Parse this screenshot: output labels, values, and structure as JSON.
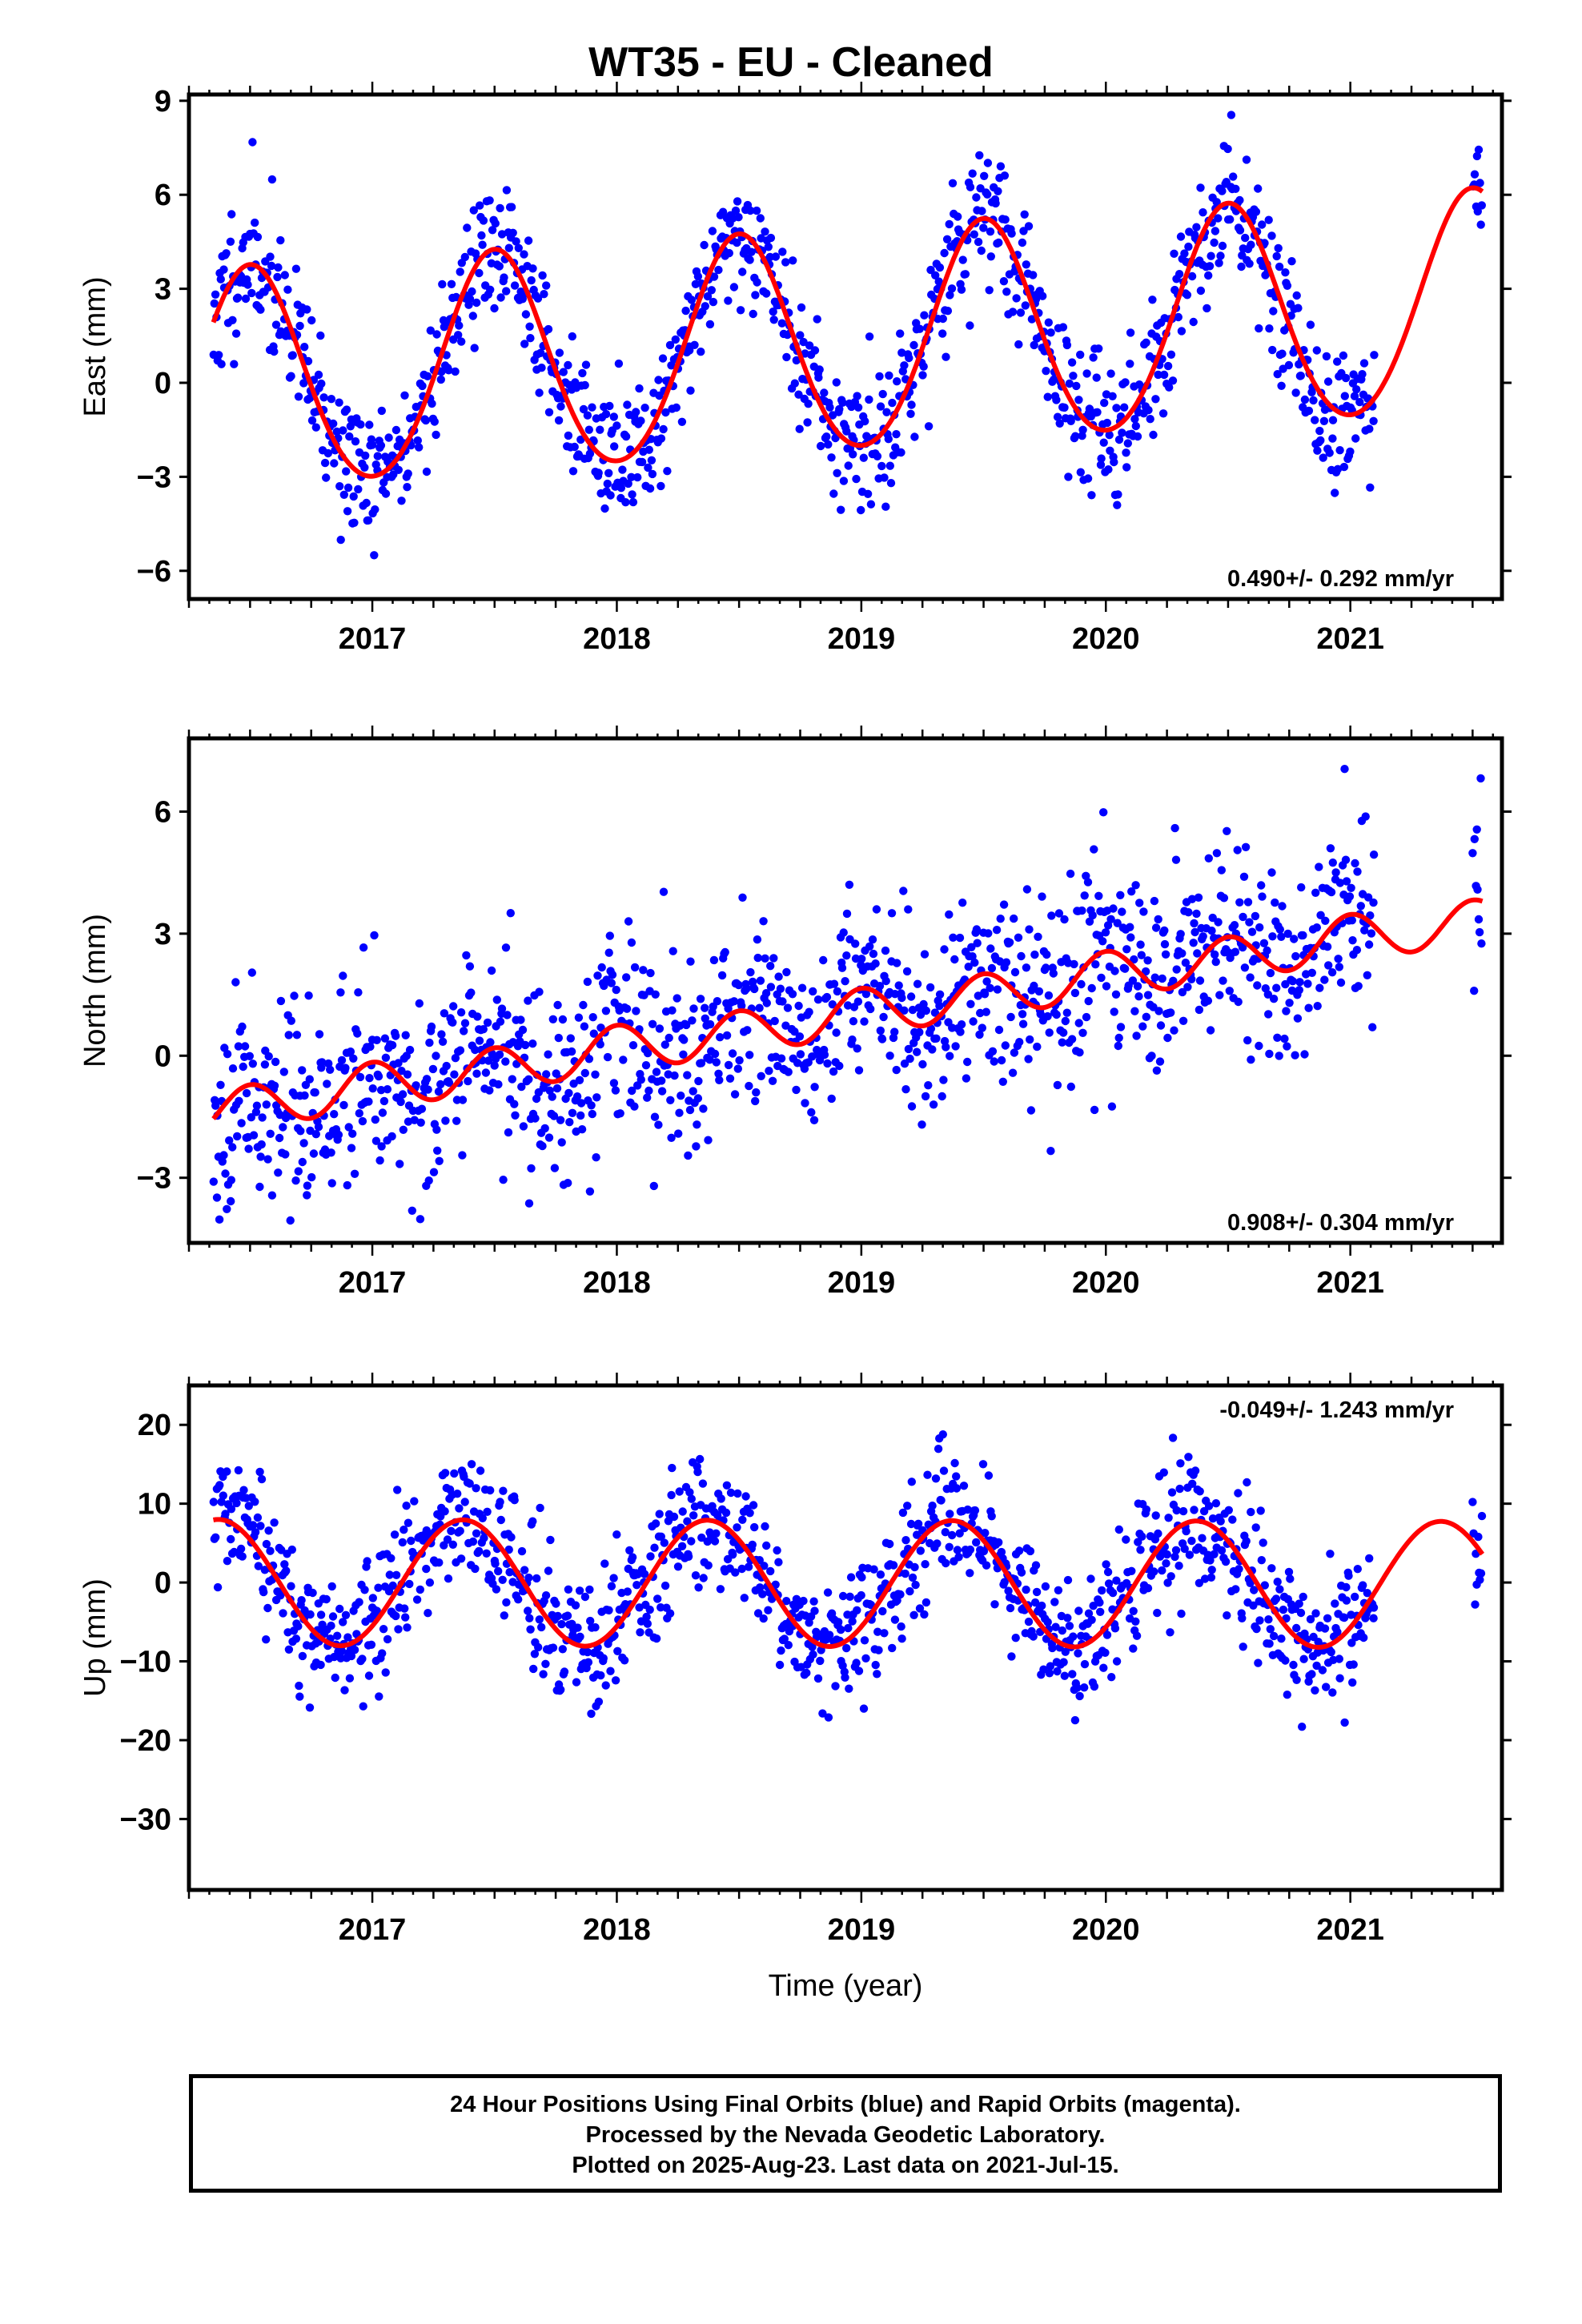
{
  "title": "WT35  - EU - Cleaned",
  "colors": {
    "final_orbits": "#0000ff",
    "model_fit": "#ff0000",
    "frame": "#000000"
  },
  "chart_data": [
    {
      "type": "scatter",
      "component": "East",
      "ylabel": "East (mm)",
      "xlabel": "",
      "xlim": [
        2016.25,
        2021.62
      ],
      "ylim": [
        -6.9,
        9.2
      ],
      "yticks": [
        -6,
        -3,
        0,
        3,
        6,
        9
      ],
      "xticks": [
        2017,
        2018,
        2019,
        2020,
        2021
      ],
      "rate_text": "0.490+/- 0.292 mm/yr",
      "rate_position": "bottom-right",
      "data_span": [
        2016.35,
        2021.54
      ],
      "model": {
        "trend_mm_per_yr": 0.49,
        "annual_amp": 3.5,
        "annual_phase": 0.5,
        "semiannual_amp": 0.25,
        "offset_at_2016_35": -0.05
      },
      "scatter": {
        "noise": 1.1,
        "points_per_year": 250,
        "seed": 11
      }
    },
    {
      "type": "scatter",
      "component": "North",
      "ylabel": "North (mm)",
      "xlabel": "",
      "xlim": [
        2016.25,
        2021.62
      ],
      "ylim": [
        -4.6,
        7.8
      ],
      "yticks": [
        -3,
        0,
        3,
        6
      ],
      "xticks": [
        2017,
        2018,
        2019,
        2020,
        2021
      ],
      "rate_text": "0.908+/- 0.304 mm/yr",
      "rate_position": "bottom-right",
      "data_span": [
        2016.35,
        2021.54
      ],
      "model": {
        "trend_mm_per_yr": 0.908,
        "annual_amp": 0.05,
        "annual_phase": 0.0,
        "semiannual_amp": 0.55,
        "offset_at_2016_35": -1.35
      },
      "scatter": {
        "noise": 1.2,
        "points_per_year": 250,
        "seed": 23
      }
    },
    {
      "type": "scatter",
      "component": "Up",
      "ylabel": "Up (mm)",
      "xlabel": "Time (year)",
      "xlim": [
        2016.25,
        2021.62
      ],
      "ylim": [
        -39,
        25
      ],
      "yticks": [
        -30,
        -20,
        -10,
        0,
        10,
        20
      ],
      "xticks": [
        2017,
        2018,
        2019,
        2020,
        2021
      ],
      "rate_text": "-0.049+/- 1.243 mm/yr",
      "rate_position": "top-right",
      "data_span": [
        2016.35,
        2021.54
      ],
      "model": {
        "trend_mm_per_yr": -0.049,
        "annual_amp": 8.0,
        "annual_phase": 0.37,
        "semiannual_amp": 0.0,
        "offset_at_2016_35": 0.0
      },
      "scatter": {
        "noise": 4.2,
        "points_per_year": 250,
        "seed": 37
      }
    }
  ],
  "footer": {
    "line1": "24 Hour Positions Using Final Orbits (blue) and Rapid Orbits (magenta).",
    "line2": "Processed by the Nevada Geodetic Laboratory.",
    "line3": "Plotted on 2025-Aug-23. Last data on 2021-Jul-15."
  }
}
